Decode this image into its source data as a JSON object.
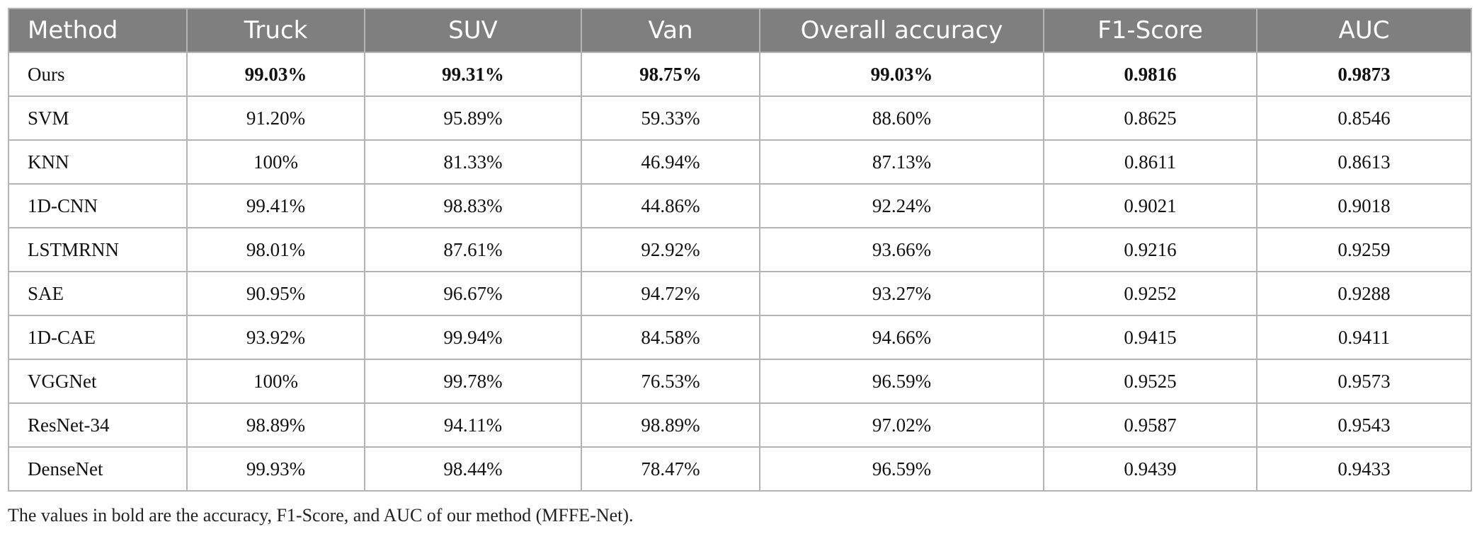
{
  "table": {
    "headers": [
      "Method",
      "Truck",
      "SUV",
      "Van",
      "Overall accuracy",
      "F1-Score",
      "AUC"
    ],
    "rows": [
      [
        "Ours",
        "99.03%",
        "99.31%",
        "98.75%",
        "99.03%",
        "0.9816",
        "0.9873"
      ],
      [
        "SVM",
        "91.20%",
        "95.89%",
        "59.33%",
        "88.60%",
        "0.8625",
        "0.8546"
      ],
      [
        "KNN",
        "100%",
        "81.33%",
        "46.94%",
        "87.13%",
        "0.8611",
        "0.8613"
      ],
      [
        "1D-CNN",
        "99.41%",
        "98.83%",
        "44.86%",
        "92.24%",
        "0.9021",
        "0.9018"
      ],
      [
        "LSTMRNN",
        "98.01%",
        "87.61%",
        "92.92%",
        "93.66%",
        "0.9216",
        "0.9259"
      ],
      [
        "SAE",
        "90.95%",
        "96.67%",
        "94.72%",
        "93.27%",
        "0.9252",
        "0.9288"
      ],
      [
        "1D-CAE",
        "93.92%",
        "99.94%",
        "84.58%",
        "94.66%",
        "0.9415",
        "0.9411"
      ],
      [
        "VGGNet",
        "100%",
        "99.78%",
        "76.53%",
        "96.59%",
        "0.9525",
        "0.9573"
      ],
      [
        "ResNet-34",
        "98.89%",
        "94.11%",
        "98.89%",
        "97.02%",
        "0.9587",
        "0.9543"
      ],
      [
        "DenseNet",
        "99.93%",
        "98.44%",
        "78.47%",
        "96.59%",
        "0.9439",
        "0.9433"
      ]
    ]
  },
  "footnote": "The values in bold are the accuracy, F1-Score, and AUC of our method (MFFE-Net).",
  "colors": {
    "header_bg": "#7f7f7f",
    "header_text": "#ffffff",
    "grid": "#b4b4b4"
  }
}
